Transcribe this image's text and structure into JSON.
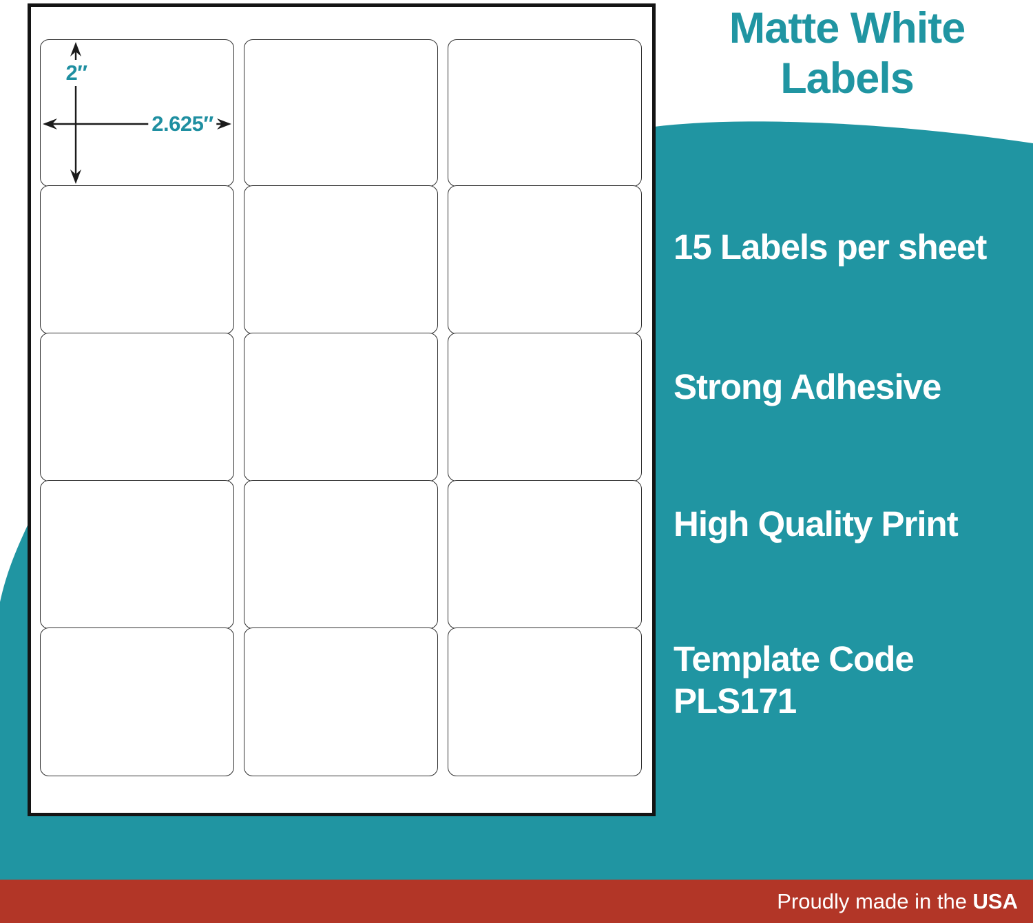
{
  "colors": {
    "teal": "#2095A2",
    "red": "#B23627",
    "dimension_text": "#1F8FA1"
  },
  "label_sheet": {
    "rows": 5,
    "columns": 3,
    "height_dimension": "2″",
    "width_dimension": "2.625″"
  },
  "info_panel": {
    "title_line1": "Matte White",
    "title_line2": "Labels",
    "features": [
      {
        "line1": "15 Labels per sheet",
        "line2": ""
      },
      {
        "line1": "Strong Adhesive",
        "line2": ""
      },
      {
        "line1": "High Quality Print",
        "line2": ""
      },
      {
        "line1": "Template Code",
        "line2": "PLS171"
      }
    ]
  },
  "footer": {
    "text_regular": "Proudly made in the ",
    "text_bold": "USA"
  }
}
